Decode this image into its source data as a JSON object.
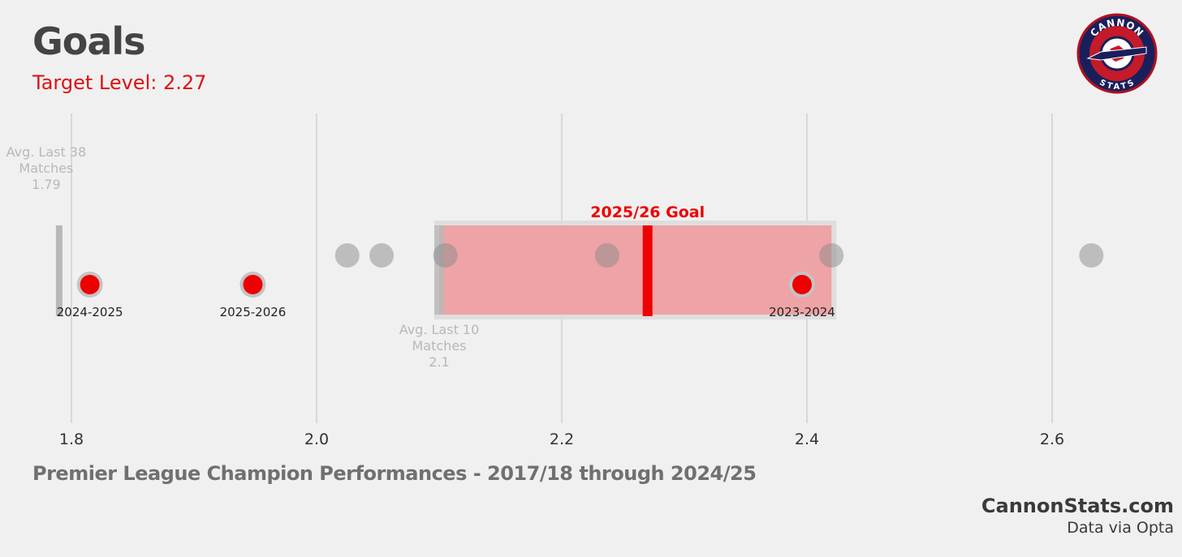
{
  "header": {
    "title": "Goals",
    "subtitle": "Target Level: 2.27"
  },
  "footer": {
    "caption": "Premier League Champion Performances - 2017/18 through 2024/25",
    "brand": "CannonStats.com",
    "source": "Data via Opta"
  },
  "logo": {
    "top_text": "CANNON",
    "bottom_text": "STATS"
  },
  "colors": {
    "background": "#f0f0f0",
    "accent_red": "#ee0000",
    "goal_band": "#eea3a6",
    "grey_point": "#a8a8a8",
    "text_dark": "#444444"
  },
  "chart_data": {
    "type": "scatter",
    "xlim": [
      1.79,
      2.7
    ],
    "ticks": [
      "1.8",
      "2.0",
      "2.2",
      "2.4",
      "2.6"
    ],
    "tick_values": [
      1.8,
      2.0,
      2.2,
      2.4,
      2.6
    ],
    "grid": true,
    "champion_points": [
      2.025,
      2.053,
      2.105,
      2.237,
      2.42,
      2.632
    ],
    "labeled_points": [
      {
        "label": "2024-2025",
        "value": 1.815
      },
      {
        "label": "2025-2026",
        "value": 1.948
      },
      {
        "label": "2023-2024",
        "value": 2.396
      }
    ],
    "goal_band": {
      "label": "2025/26 Goal",
      "min": 2.1,
      "max": 2.42,
      "target": 2.27
    },
    "reference_markers": [
      {
        "label": "Avg. Last 38 Matches",
        "value_text": "1.79",
        "value": 1.79
      },
      {
        "label": "Avg. Last 10 Matches",
        "value_text": "2.1",
        "value": 2.1
      }
    ]
  }
}
